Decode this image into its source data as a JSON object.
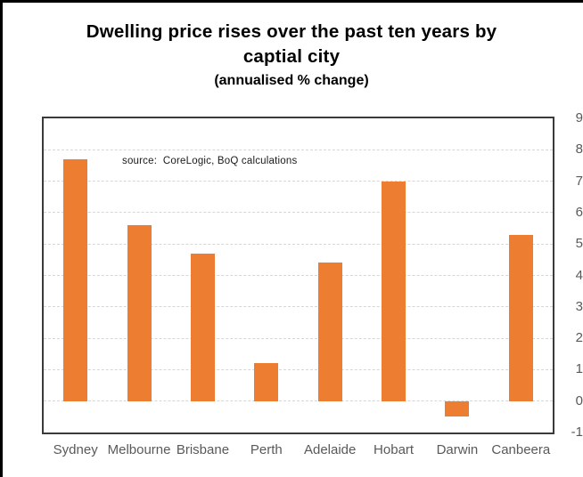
{
  "titles": {
    "line1": "Dwelling price rises over the past ten years by",
    "line2": "captial city",
    "subtitle": "(annualised % change)"
  },
  "chart_data": {
    "type": "bar",
    "title": "Dwelling price rises over the past ten years by captial city",
    "subtitle": "(annualised % change)",
    "categories": [
      "Sydney",
      "Melbourne",
      "Brisbane",
      "Perth",
      "Adelaide",
      "Hobart",
      "Darwin",
      "Canbeera"
    ],
    "values": [
      7.7,
      5.6,
      4.7,
      1.2,
      4.4,
      7.0,
      -0.5,
      5.3
    ],
    "source_note": "source:  CoreLogic, BoQ calculations",
    "xlabel": "",
    "ylabel": "",
    "ylim": [
      -1,
      9
    ],
    "ytick_step": 1,
    "grid": true,
    "legend": "none",
    "colors": {
      "bar": "#ED7D31",
      "gridline": "#d6d6d6",
      "frame": "#3a3a3a",
      "axis_labels": "#595959",
      "title": "#000000"
    }
  }
}
